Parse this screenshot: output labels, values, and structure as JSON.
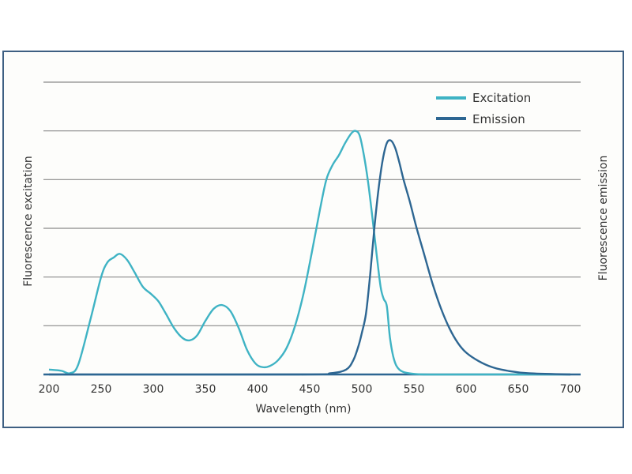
{
  "chart_data": {
    "type": "line",
    "title": "",
    "xlabel": "Wavelength (nm)",
    "ylabel_left": "Fluorescence excitation",
    "ylabel_right": "Fluorescence emission",
    "xlim": [
      200,
      700
    ],
    "ylim": [
      0,
      1.2
    ],
    "x_ticks": [
      200,
      250,
      300,
      350,
      400,
      450,
      500,
      550,
      600,
      650,
      700
    ],
    "y_gridlines": [
      0.2,
      0.4,
      0.6,
      0.8,
      1.0,
      1.2
    ],
    "grid": true,
    "legend_position": "top-right",
    "series": [
      {
        "name": "Excitation",
        "color": "#3fb3c4",
        "x": [
          200,
          212,
          220,
          228,
          240,
          250,
          256,
          262,
          268,
          275,
          282,
          290,
          298,
          305,
          312,
          320,
          328,
          335,
          342,
          350,
          358,
          366,
          374,
          382,
          390,
          398,
          405,
          412,
          420,
          428,
          436,
          444,
          452,
          460,
          466,
          472,
          478,
          484,
          490,
          494,
          498,
          502,
          506,
          510,
          514,
          518,
          521,
          524,
          527,
          531,
          536,
          545,
          560,
          600,
          700
        ],
        "y": [
          0.02,
          0.015,
          0.005,
          0.04,
          0.23,
          0.4,
          0.46,
          0.48,
          0.495,
          0.47,
          0.42,
          0.36,
          0.33,
          0.3,
          0.25,
          0.19,
          0.15,
          0.14,
          0.16,
          0.22,
          0.27,
          0.285,
          0.26,
          0.19,
          0.1,
          0.045,
          0.03,
          0.035,
          0.06,
          0.11,
          0.2,
          0.33,
          0.5,
          0.68,
          0.8,
          0.86,
          0.9,
          0.95,
          0.99,
          1.0,
          0.98,
          0.9,
          0.79,
          0.65,
          0.5,
          0.36,
          0.31,
          0.28,
          0.15,
          0.06,
          0.02,
          0.005,
          0.0,
          0.0,
          0.0
        ]
      },
      {
        "name": "Emission",
        "color": "#2d6692",
        "x": [
          200,
          440,
          470,
          485,
          492,
          497,
          500,
          504,
          508,
          512,
          516,
          520,
          524,
          528,
          532,
          536,
          540,
          546,
          552,
          560,
          568,
          576,
          584,
          592,
          600,
          612,
          625,
          640,
          660,
          700
        ],
        "y": [
          0.0,
          0.0,
          0.005,
          0.02,
          0.06,
          0.12,
          0.17,
          0.25,
          0.41,
          0.6,
          0.76,
          0.88,
          0.95,
          0.96,
          0.93,
          0.87,
          0.8,
          0.71,
          0.61,
          0.49,
          0.37,
          0.27,
          0.19,
          0.13,
          0.09,
          0.055,
          0.03,
          0.015,
          0.005,
          0.0
        ]
      }
    ]
  }
}
